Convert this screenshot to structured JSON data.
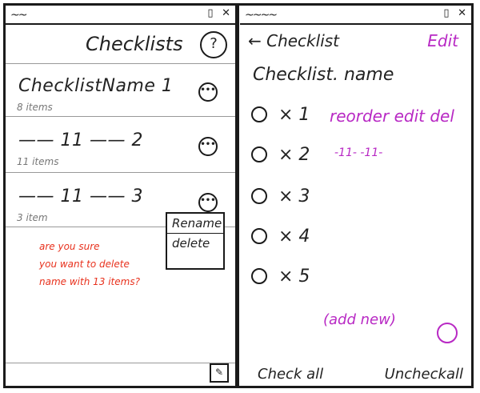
{
  "left_panel": {
    "status_icons": [
      "▯",
      "✕"
    ],
    "title": "Checklists",
    "help_label": "?",
    "rows": [
      {
        "name": "ChecklistName 1",
        "count": "8 items"
      },
      {
        "name": "—— 11 —— 2",
        "count": "11 items"
      },
      {
        "name": "—— 11 —— 3",
        "count": "3 item"
      }
    ],
    "more_label": "•••",
    "menu": {
      "rename": "Rename",
      "delete": "delete"
    },
    "confirm": {
      "line1": "are you sure",
      "line2": "you want to delete",
      "line3": "name with 13 items?"
    },
    "edit_icon": "✎"
  },
  "right_panel": {
    "back_label": "← Checklist",
    "edit_label": "Edit",
    "list_name": "Checklist. name",
    "items": [
      "× 1",
      "× 2",
      "× 3",
      "× 4",
      "× 5"
    ],
    "annotations": {
      "actions": "reorder edit del",
      "row2": "-11-  -11-"
    },
    "add_new": "(add new)",
    "check_all": "Check all",
    "uncheck_all": "Uncheckall"
  },
  "colors": {
    "accent": "#b829c4",
    "warning": "#e8321e"
  }
}
